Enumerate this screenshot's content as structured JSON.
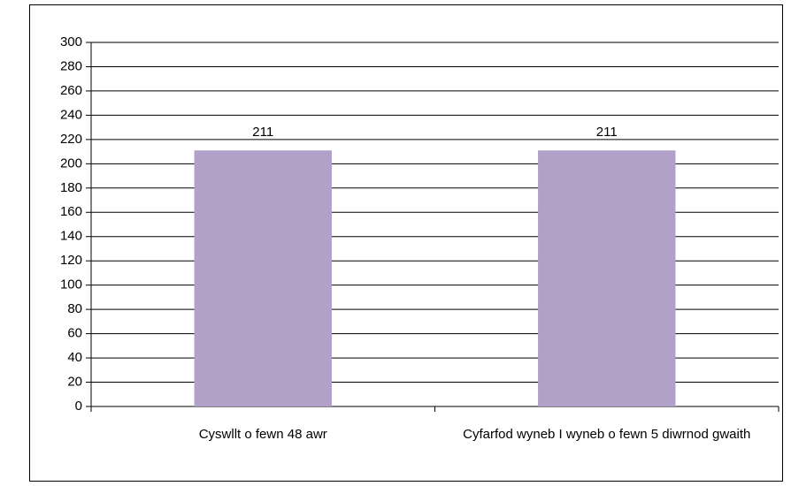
{
  "chart_data": {
    "type": "bar",
    "categories": [
      "Cyswllt o fewn 48 awr",
      "Cyfarfod wyneb I wyneb o fewn 5 diwrnod gwaith"
    ],
    "values": [
      211,
      211
    ],
    "color": "#b1a0c7",
    "ylim": [
      0,
      300
    ],
    "yticks": [
      0,
      20,
      40,
      60,
      80,
      100,
      120,
      140,
      160,
      180,
      200,
      220,
      240,
      260,
      280,
      300
    ],
    "grid": true
  }
}
